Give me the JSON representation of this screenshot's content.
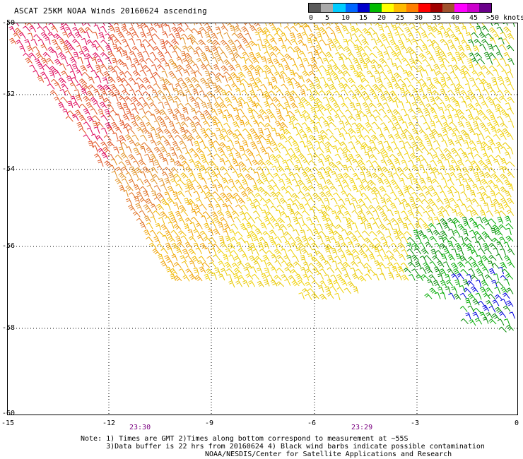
{
  "title": "ASCAT 25KM NOAA Winds 20160624 ascending",
  "colorbar": {
    "colors": [
      "#5a5a5a",
      "#a9a9a9",
      "#00ccff",
      "#0066ff",
      "#0000cc",
      "#00bb00",
      "#ffff00",
      "#ffbb00",
      "#ff7f00",
      "#ff0000",
      "#a00000",
      "#a0522d",
      "#ff00ff",
      "#cc00cc",
      "#6a008a"
    ],
    "labels": [
      "0",
      "5",
      "10",
      "15",
      "20",
      "25",
      "30",
      "35",
      "40",
      "45",
      ">50 knots"
    ]
  },
  "axes": {
    "y_labels": [
      "-50",
      "-52",
      "-54",
      "-56",
      "-58",
      "-60"
    ],
    "x_labels": [
      "-15",
      "-12",
      "-9",
      "-6",
      "-3",
      "0"
    ]
  },
  "times": [
    "23:30",
    "23:29"
  ],
  "notes": [
    "Note: 1) Times are GMT 2)Times along bottom correspond to measurement at ~55S",
    "      3)Data buffer is 22 hrs from 20160624 4) Black wind barbs indicate possible contamination"
  ],
  "credit": "NOAA/NESDIS/Center for Satellite Applications and Research"
}
